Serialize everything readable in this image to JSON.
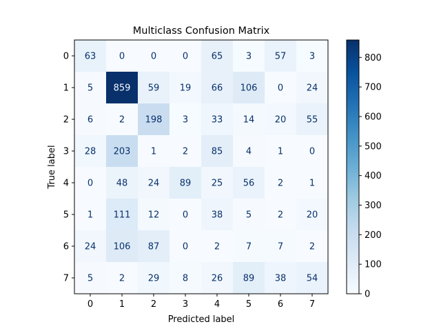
{
  "chart_data": {
    "type": "heatmap",
    "title": "Multiclass Confusion Matrix",
    "xlabel": "Predicted label",
    "ylabel": "True label",
    "x_categories": [
      "0",
      "1",
      "2",
      "3",
      "4",
      "5",
      "6",
      "7"
    ],
    "y_categories": [
      "0",
      "1",
      "2",
      "3",
      "4",
      "5",
      "6",
      "7"
    ],
    "matrix": [
      [
        63,
        0,
        0,
        0,
        65,
        3,
        57,
        3
      ],
      [
        5,
        859,
        59,
        19,
        66,
        106,
        0,
        24
      ],
      [
        6,
        2,
        198,
        3,
        33,
        14,
        20,
        55
      ],
      [
        28,
        203,
        1,
        2,
        85,
        4,
        1,
        0
      ],
      [
        0,
        48,
        24,
        89,
        25,
        56,
        2,
        1
      ],
      [
        1,
        111,
        12,
        0,
        38,
        5,
        2,
        20
      ],
      [
        24,
        106,
        87,
        0,
        2,
        7,
        7,
        2
      ],
      [
        5,
        2,
        29,
        8,
        26,
        89,
        38,
        54
      ]
    ],
    "colormap": "Blues",
    "colorbar": {
      "ticks": [
        0,
        100,
        200,
        300,
        400,
        500,
        600,
        700,
        800
      ],
      "range": [
        0,
        859
      ]
    },
    "grid": false
  }
}
